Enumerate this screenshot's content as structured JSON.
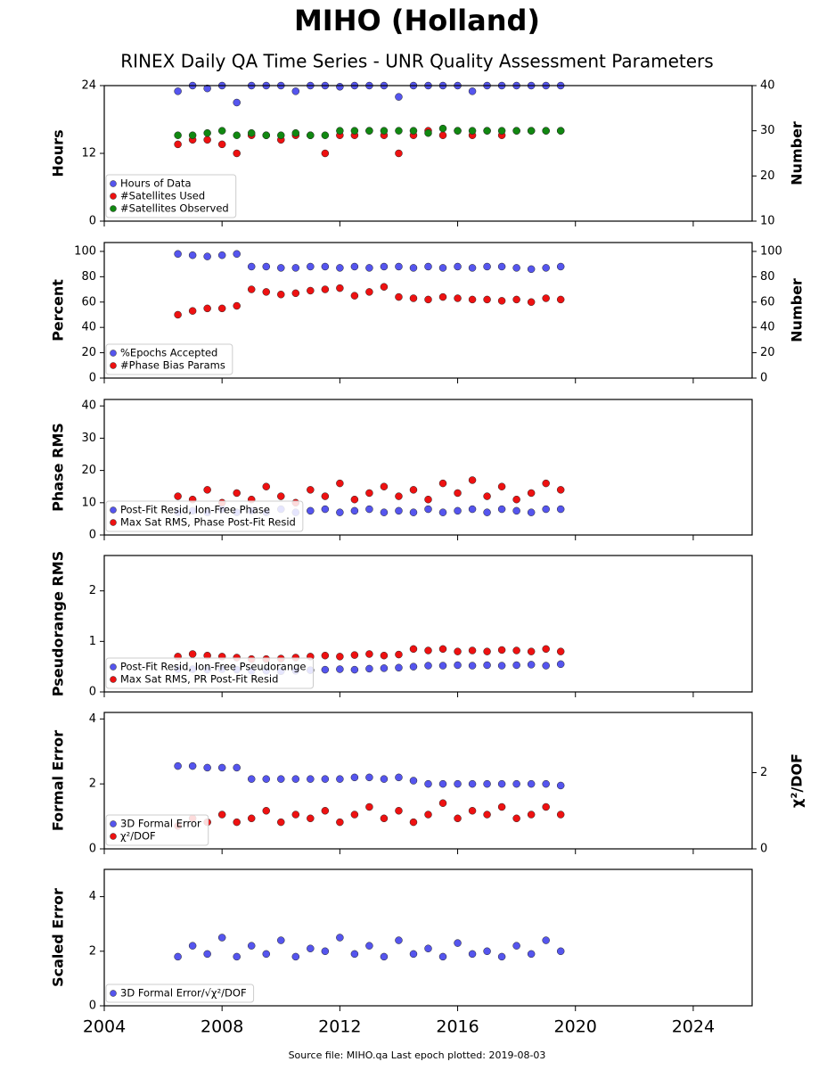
{
  "title": "MIHO (Holland)",
  "subtitle": "RINEX Daily QA Time Series - UNR Quality Assessment Parameters",
  "source": "Source file: MIHO.qa Last epoch plotted: 2019-08-03",
  "chart_data": [
    {
      "type": "scatter",
      "ylabel": "Hours",
      "y2label": "Number",
      "xlim": [
        2004,
        2026
      ],
      "xticks": [
        2004,
        2008,
        2012,
        2016,
        2020,
        2024
      ],
      "ylim": [
        0,
        24
      ],
      "yticks": [
        0,
        12,
        24
      ],
      "y2lim": [
        10,
        40
      ],
      "y2ticks": [
        10,
        20,
        30,
        40
      ],
      "x": [
        2006.5,
        2007,
        2007.5,
        2008,
        2008.5,
        2009,
        2009.5,
        2010,
        2010.5,
        2011,
        2011.5,
        2012,
        2012.5,
        2013,
        2013.5,
        2014,
        2014.5,
        2015,
        2015.5,
        2016,
        2016.5,
        2017,
        2017.5,
        2018,
        2018.5,
        2019,
        2019.5
      ],
      "series": [
        {
          "name": "Hours of Data",
          "color": "#5555ee",
          "values": [
            23,
            24,
            23.5,
            24,
            21,
            24,
            24,
            24,
            23,
            24,
            24,
            23.8,
            24,
            24,
            24,
            22,
            24,
            24,
            24,
            24,
            23,
            24,
            24,
            24,
            24,
            24,
            24
          ]
        },
        {
          "name": "#Satellites Used",
          "color": "#ee1111",
          "axis": "y2",
          "values": [
            27,
            28,
            28,
            27,
            25,
            29,
            29,
            28,
            29,
            29,
            25,
            29,
            29,
            30,
            29,
            25,
            29,
            30,
            29,
            30,
            29,
            30,
            29,
            30,
            30,
            30,
            30
          ]
        },
        {
          "name": "#Satellites Observed",
          "color": "#118811",
          "axis": "y2",
          "values": [
            29,
            29,
            29.5,
            30,
            29,
            29.5,
            29,
            29,
            29.5,
            29,
            29,
            30,
            30,
            30,
            30,
            30,
            30,
            29.5,
            30.5,
            30,
            30,
            30,
            30,
            30,
            30,
            30,
            30
          ]
        }
      ]
    },
    {
      "type": "scatter",
      "ylabel": "Percent",
      "y2label": "Number",
      "xlim": [
        2004,
        2026
      ],
      "xticks": [
        2004,
        2008,
        2012,
        2016,
        2020,
        2024
      ],
      "ylim": [
        0,
        107
      ],
      "yticks": [
        0,
        20,
        40,
        60,
        80,
        100
      ],
      "y2lim": [
        0,
        107
      ],
      "y2ticks": [
        0,
        20,
        40,
        60,
        80,
        100
      ],
      "x": [
        2006.5,
        2007,
        2007.5,
        2008,
        2008.5,
        2009,
        2009.5,
        2010,
        2010.5,
        2011,
        2011.5,
        2012,
        2012.5,
        2013,
        2013.5,
        2014,
        2014.5,
        2015,
        2015.5,
        2016,
        2016.5,
        2017,
        2017.5,
        2018,
        2018.5,
        2019,
        2019.5
      ],
      "series": [
        {
          "name": "%Epochs Accepted",
          "color": "#5555ee",
          "values": [
            98,
            97,
            96,
            97,
            98,
            88,
            88,
            87,
            87,
            88,
            88,
            87,
            88,
            87,
            88,
            88,
            87,
            88,
            87,
            88,
            87,
            88,
            88,
            87,
            86,
            87,
            88
          ]
        },
        {
          "name": "#Phase Bias Params",
          "color": "#ee1111",
          "axis": "y2",
          "values": [
            50,
            53,
            55,
            55,
            57,
            70,
            68,
            66,
            67,
            69,
            70,
            71,
            65,
            68,
            72,
            64,
            63,
            62,
            64,
            63,
            62,
            62,
            61,
            62,
            60,
            63,
            62
          ]
        }
      ]
    },
    {
      "type": "scatter",
      "ylabel": "Phase RMS",
      "xlim": [
        2004,
        2026
      ],
      "xticks": [
        2004,
        2008,
        2012,
        2016,
        2020,
        2024
      ],
      "ylim": [
        0,
        42
      ],
      "yticks": [
        0,
        10,
        20,
        30,
        40
      ],
      "x": [
        2006.5,
        2007,
        2007.5,
        2008,
        2008.5,
        2009,
        2009.5,
        2010,
        2010.5,
        2011,
        2011.5,
        2012,
        2012.5,
        2013,
        2013.5,
        2014,
        2014.5,
        2015,
        2015.5,
        2016,
        2016.5,
        2017,
        2017.5,
        2018,
        2018.5,
        2019,
        2019.5
      ],
      "series": [
        {
          "name": "Post-Fit Resid, Ion-Free Phase",
          "color": "#5555ee",
          "values": [
            7,
            7.5,
            7,
            8,
            7,
            7.5,
            7,
            8,
            7,
            7.5,
            8,
            7,
            7.5,
            8,
            7,
            7.5,
            7,
            8,
            7,
            7.5,
            8,
            7,
            8,
            7.5,
            7,
            8,
            8
          ]
        },
        {
          "name": "Max Sat RMS, Phase Post-Fit Resid",
          "color": "#ee1111",
          "values": [
            12,
            11,
            14,
            10,
            13,
            11,
            15,
            12,
            10,
            14,
            12,
            16,
            11,
            13,
            15,
            12,
            14,
            11,
            16,
            13,
            17,
            12,
            15,
            11,
            13,
            16,
            14
          ]
        }
      ]
    },
    {
      "type": "scatter",
      "ylabel": "Pseudorange RMS",
      "xlim": [
        2004,
        2026
      ],
      "xticks": [
        2004,
        2008,
        2012,
        2016,
        2020,
        2024
      ],
      "ylim": [
        0,
        2.7
      ],
      "yticks": [
        0,
        1,
        2
      ],
      "x": [
        2006.5,
        2007,
        2007.5,
        2008,
        2008.5,
        2009,
        2009.5,
        2010,
        2010.5,
        2011,
        2011.5,
        2012,
        2012.5,
        2013,
        2013.5,
        2014,
        2014.5,
        2015,
        2015.5,
        2016,
        2016.5,
        2017,
        2017.5,
        2018,
        2018.5,
        2019,
        2019.5
      ],
      "series": [
        {
          "name": "Post-Fit Resid, Ion-Free Pseudorange",
          "color": "#5555ee",
          "values": [
            0.45,
            0.45,
            0.44,
            0.45,
            0.44,
            0.42,
            0.42,
            0.41,
            0.42,
            0.43,
            0.44,
            0.45,
            0.44,
            0.46,
            0.47,
            0.48,
            0.5,
            0.52,
            0.52,
            0.53,
            0.52,
            0.53,
            0.52,
            0.53,
            0.54,
            0.52,
            0.55
          ]
        },
        {
          "name": "Max Sat RMS, PR Post-Fit Resid",
          "color": "#ee1111",
          "values": [
            0.7,
            0.75,
            0.72,
            0.7,
            0.68,
            0.65,
            0.65,
            0.66,
            0.68,
            0.7,
            0.72,
            0.7,
            0.73,
            0.75,
            0.72,
            0.74,
            0.85,
            0.82,
            0.85,
            0.8,
            0.82,
            0.8,
            0.83,
            0.82,
            0.8,
            0.85,
            0.8
          ]
        }
      ]
    },
    {
      "type": "scatter",
      "ylabel": "Formal Error",
      "y2label": "χ²/DOF",
      "xlim": [
        2004,
        2026
      ],
      "xticks": [
        2004,
        2008,
        2012,
        2016,
        2020,
        2024
      ],
      "ylim": [
        0,
        4.2
      ],
      "yticks": [
        0,
        2,
        4
      ],
      "y2lim": [
        0,
        3.58
      ],
      "y2ticks": [
        0,
        2
      ],
      "x": [
        2006.5,
        2007,
        2007.5,
        2008,
        2008.5,
        2009,
        2009.5,
        2010,
        2010.5,
        2011,
        2011.5,
        2012,
        2012.5,
        2013,
        2013.5,
        2014,
        2014.5,
        2015,
        2015.5,
        2016,
        2016.5,
        2017,
        2017.5,
        2018,
        2018.5,
        2019,
        2019.5
      ],
      "series": [
        {
          "name": "3D Formal Error",
          "color": "#5555ee",
          "values": [
            2.55,
            2.55,
            2.5,
            2.5,
            2.5,
            2.15,
            2.15,
            2.15,
            2.15,
            2.15,
            2.15,
            2.15,
            2.2,
            2.2,
            2.15,
            2.2,
            2.1,
            2.0,
            2.0,
            2.0,
            2.0,
            2.0,
            2.0,
            2.0,
            2.0,
            2.0,
            1.95
          ]
        },
        {
          "name": "χ²/DOF",
          "color": "#ee1111",
          "axis": "y2",
          "values": [
            0.6,
            0.8,
            0.7,
            0.9,
            0.7,
            0.8,
            1.0,
            0.7,
            0.9,
            0.8,
            1.0,
            0.7,
            0.9,
            1.1,
            0.8,
            1.0,
            0.7,
            0.9,
            1.2,
            0.8,
            1.0,
            0.9,
            1.1,
            0.8,
            0.9,
            1.1,
            0.9
          ]
        }
      ]
    },
    {
      "type": "scatter",
      "ylabel": "Scaled Error",
      "xlim": [
        2004,
        2026
      ],
      "xticks": [
        2004,
        2008,
        2012,
        2016,
        2020,
        2024
      ],
      "ylim": [
        0,
        5
      ],
      "yticks": [
        0,
        2,
        4
      ],
      "x": [
        2006.5,
        2007,
        2007.5,
        2008,
        2008.5,
        2009,
        2009.5,
        2010,
        2010.5,
        2011,
        2011.5,
        2012,
        2012.5,
        2013,
        2013.5,
        2014,
        2014.5,
        2015,
        2015.5,
        2016,
        2016.5,
        2017,
        2017.5,
        2018,
        2018.5,
        2019,
        2019.5
      ],
      "series": [
        {
          "name": "3D Formal Error/√χ²/DOF",
          "color": "#5555ee",
          "values": [
            1.8,
            2.2,
            1.9,
            2.5,
            1.8,
            2.2,
            1.9,
            2.4,
            1.8,
            2.1,
            2.0,
            2.5,
            1.9,
            2.2,
            1.8,
            2.4,
            1.9,
            2.1,
            1.8,
            2.3,
            1.9,
            2.0,
            1.8,
            2.2,
            1.9,
            2.4,
            2.0
          ]
        }
      ]
    }
  ]
}
